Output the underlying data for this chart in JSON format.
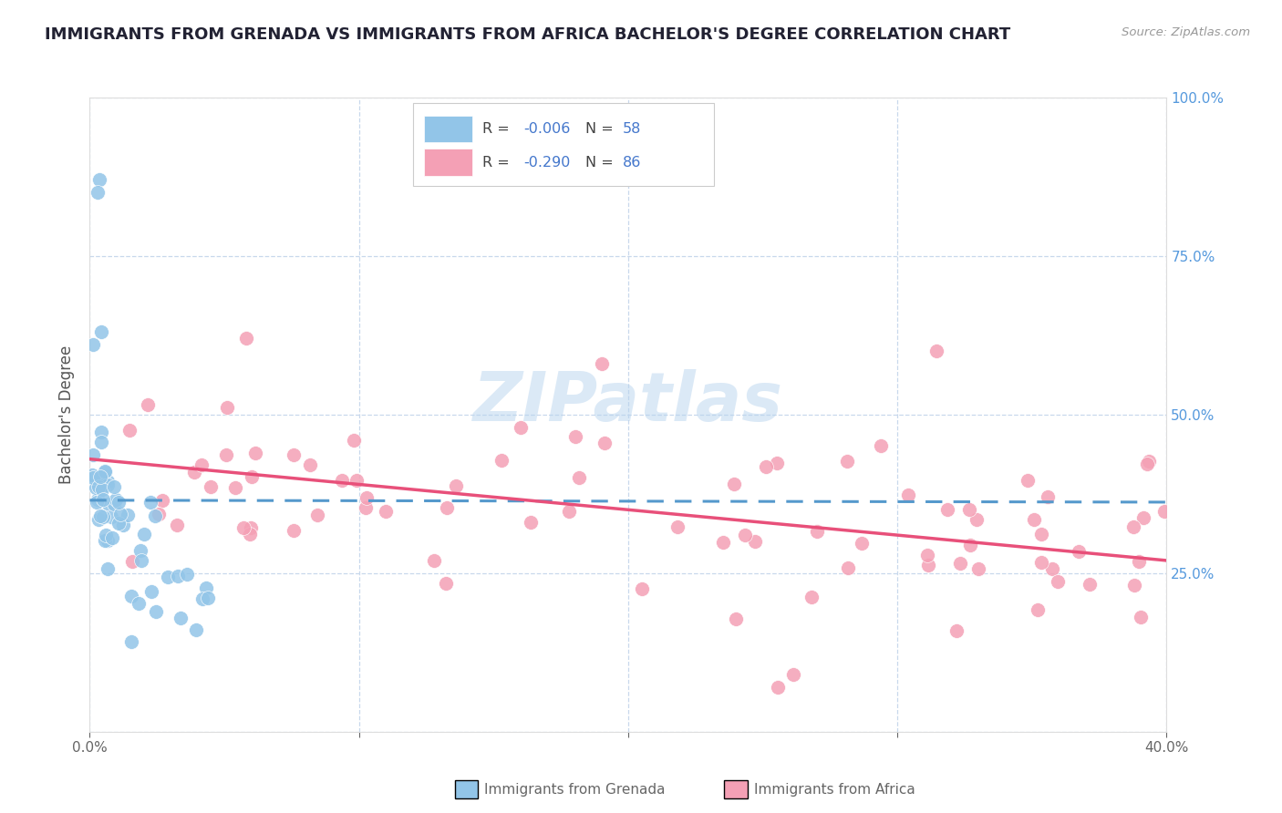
{
  "title": "IMMIGRANTS FROM GRENADA VS IMMIGRANTS FROM AFRICA BACHELOR'S DEGREE CORRELATION CHART",
  "source_text": "Source: ZipAtlas.com",
  "ylabel": "Bachelor's Degree",
  "xlim": [
    0.0,
    0.4
  ],
  "ylim": [
    0.0,
    1.0
  ],
  "xtick_positions": [
    0.0,
    0.1,
    0.2,
    0.3,
    0.4
  ],
  "xticklabels": [
    "0.0%",
    "",
    "",
    "",
    "40.0%"
  ],
  "yticks_right": [
    0.25,
    0.5,
    0.75,
    1.0
  ],
  "ytick_right_labels": [
    "25.0%",
    "50.0%",
    "75.0%",
    "100.0%"
  ],
  "grenada_R": -0.006,
  "grenada_N": 58,
  "africa_R": -0.29,
  "africa_N": 86,
  "grenada_color": "#92C5E8",
  "africa_color": "#F4A0B5",
  "trend_grenada_color": "#5599CC",
  "trend_africa_color": "#E8507A",
  "background_color": "#FFFFFF",
  "plot_bg_color": "#FFFFFF",
  "grid_color": "#C8D8EC",
  "title_color": "#222233",
  "legend_text_color": "#333333",
  "legend_value_color": "#4477CC",
  "watermark_text": "ZIPatlas",
  "bottom_legend_grenada": "Immigrants from Grenada",
  "bottom_legend_africa": "Immigrants from Africa"
}
